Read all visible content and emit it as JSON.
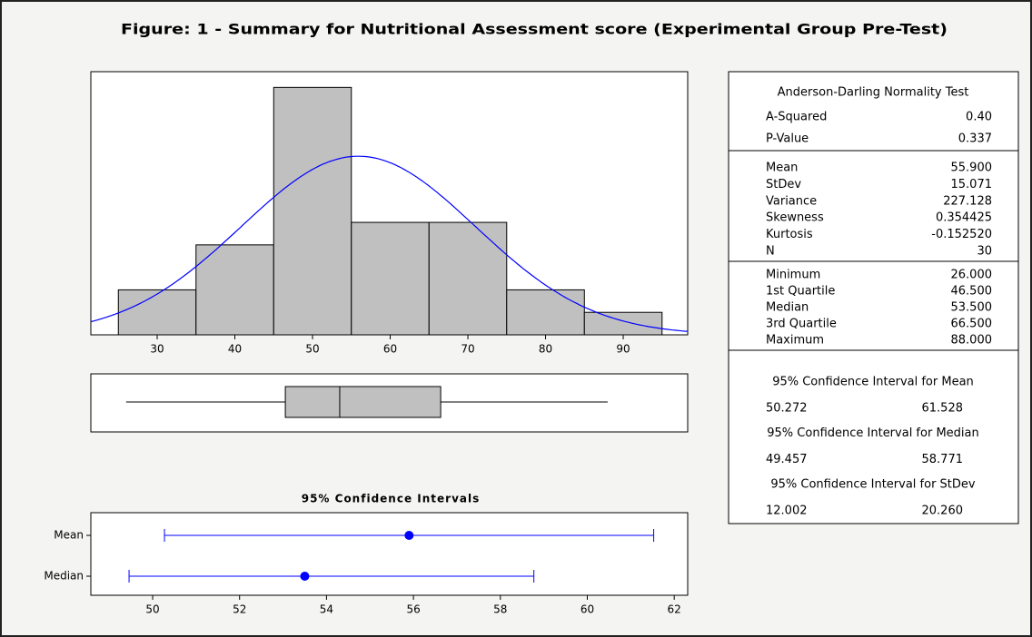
{
  "title": "Figure: 1 - Summary for Nutritional Assessment score (Experimental Group Pre-Test)",
  "chart_data": [
    {
      "type": "histogram",
      "bins": [
        25,
        35,
        45,
        55,
        65,
        75,
        85,
        95
      ],
      "counts": [
        2,
        4,
        11,
        5,
        5,
        2,
        1
      ],
      "color": "#c0c0c0",
      "curve_color": "#0000ff",
      "xlim": [
        21.46,
        98.3
      ],
      "ylim": [
        0,
        11.7
      ],
      "xticks": [
        30,
        40,
        50,
        60,
        70,
        80,
        90
      ]
    },
    {
      "type": "box",
      "color": "#c0c0c0",
      "xlim": [
        21.46,
        98.3
      ]
    },
    {
      "type": "interval",
      "title": "95% Confidence Intervals",
      "categories": [
        "Mean",
        "Median"
      ],
      "color": "#0000ff",
      "xlim": [
        48.578,
        62.31
      ],
      "xticks": [
        50,
        52,
        54,
        56,
        58,
        60,
        62
      ]
    }
  ],
  "summary": {
    "test": {
      "title": "Anderson-Darling Normality Test",
      "rows": [
        [
          "A-Squared",
          "0.40"
        ],
        [
          "P-Value",
          "0.337"
        ]
      ]
    },
    "stats": {
      "rows": [
        [
          "Mean",
          "55.900"
        ],
        [
          "StDev",
          "15.071"
        ],
        [
          "Variance",
          "227.128"
        ],
        [
          "Skewness",
          "0.354425"
        ],
        [
          "Kurtosis",
          "-0.152520"
        ],
        [
          "N",
          "30"
        ]
      ]
    },
    "quartiles": {
      "rows": [
        [
          "Minimum",
          "26.000"
        ],
        [
          "1st Quartile",
          "46.500"
        ],
        [
          "Median",
          "53.500"
        ],
        [
          "3rd Quartile",
          "66.500"
        ],
        [
          "Maximum",
          "88.000"
        ]
      ]
    },
    "intervals": [
      {
        "title": "95% Confidence Interval for Mean",
        "values": [
          "50.272",
          "61.528"
        ]
      },
      {
        "title": "95% Confidence Interval for Median",
        "values": [
          "49.457",
          "58.771"
        ]
      },
      {
        "title": "95% Confidence Interval for StDev",
        "values": [
          "12.002",
          "20.260"
        ]
      }
    ]
  }
}
